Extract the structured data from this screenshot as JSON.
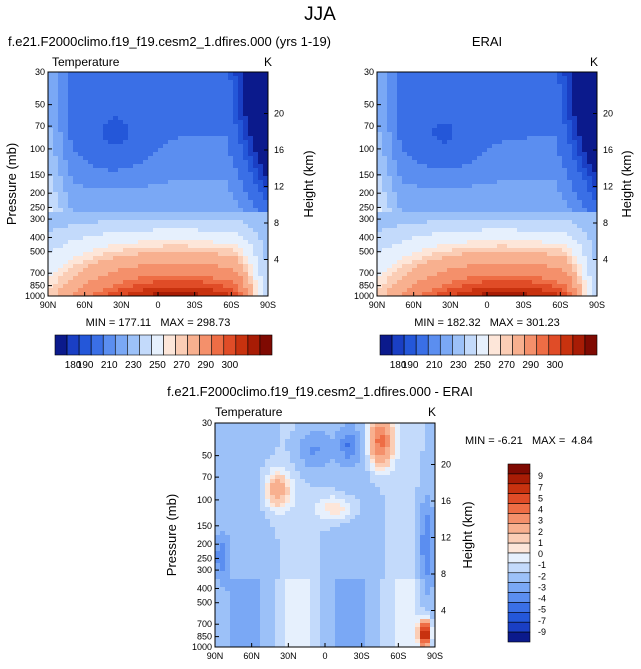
{
  "figure": {
    "title": "JJA"
  },
  "colors": {
    "abs_scale": [
      "#0b1a8c",
      "#1a3fc4",
      "#2457d9",
      "#3a6fe6",
      "#5b8ef0",
      "#7aa8f5",
      "#9cc1f8",
      "#c3dafb",
      "#e6f0fd",
      "#fde6d9",
      "#fbcdb5",
      "#f8b08f",
      "#f4906b",
      "#ee6d45",
      "#e04c27",
      "#c8320f",
      "#a81c05",
      "#7f0a02"
    ],
    "diff_scale": [
      "#0b1a8c",
      "#1a3fc4",
      "#2457d9",
      "#3a6fe6",
      "#5b8ef0",
      "#7aa8f5",
      "#9cc1f8",
      "#c3dafb",
      "#e6f0fd",
      "#fde6d9",
      "#fbcdb5",
      "#f8b08f",
      "#f4906b",
      "#ee6d45",
      "#e04c27",
      "#c8320f",
      "#a81c05",
      "#7f0a02"
    ]
  },
  "chart_data": [
    {
      "type": "heatmap",
      "id": "model",
      "title": "f.e21.F2000climo.f19_f19.cesm2_1.dfires.000 (yrs 1-19)",
      "variable": "Temperature",
      "units": "K",
      "ylabel": "Pressure (mb)",
      "ylabel_right": "Height (km)",
      "x_ticks": [
        "90N",
        "60N",
        "30N",
        "0",
        "30S",
        "60S",
        "90S"
      ],
      "y_ticks": [
        "30",
        "50",
        "70",
        "100",
        "150",
        "200",
        "250",
        "300",
        "400",
        "500",
        "700",
        "850",
        "1000"
      ],
      "y_right_ticks": [
        "20",
        "16",
        "12",
        "8",
        "4"
      ],
      "stats": "MIN = 177.11   MAX = 298.73",
      "colorbar_labels": [
        "180",
        "190",
        "210",
        "230",
        "250",
        "270",
        "290",
        "300"
      ],
      "field": "temperature",
      "vmin": 175,
      "vmax": 305
    },
    {
      "type": "heatmap",
      "id": "obs",
      "title": "ERAI",
      "variable": "",
      "units": "K",
      "ylabel": "",
      "ylabel_right": "Height (km)",
      "x_ticks": [
        "90N",
        "60N",
        "30N",
        "0",
        "30S",
        "60S",
        "90S"
      ],
      "y_ticks": [
        "30",
        "50",
        "70",
        "100",
        "150",
        "200",
        "250",
        "300",
        "400",
        "500",
        "700",
        "850",
        "1000"
      ],
      "y_right_ticks": [
        "20",
        "16",
        "12",
        "8",
        "4"
      ],
      "stats": "MIN = 182.32   MAX = 301.23",
      "colorbar_labels": [
        "180",
        "190",
        "210",
        "230",
        "250",
        "270",
        "290",
        "300"
      ],
      "field": "temperature",
      "vmin": 175,
      "vmax": 305
    },
    {
      "type": "heatmap",
      "id": "diff",
      "title": "f.e21.F2000climo.f19_f19.cesm2_1.dfires.000 - ERAI",
      "variable": "Temperature",
      "units": "K",
      "ylabel": "Pressure (mb)",
      "ylabel_right": "Height (km)",
      "x_ticks": [
        "90N",
        "60N",
        "30N",
        "0",
        "30S",
        "60S",
        "90S"
      ],
      "y_ticks": [
        "30",
        "50",
        "70",
        "100",
        "150",
        "200",
        "250",
        "300",
        "400",
        "500",
        "700",
        "850",
        "1000"
      ],
      "y_right_ticks": [
        "20",
        "16",
        "12",
        "8",
        "4"
      ],
      "stats": "MIN = -6.21   MAX =  4.84",
      "colorbar_labels": [
        "9",
        "7",
        "5",
        "4",
        "3",
        "2",
        "1",
        "0",
        "-1",
        "-2",
        "-3",
        "-4",
        "-5",
        "-7",
        "-9"
      ],
      "field": "difference",
      "vmin": -9,
      "vmax": 9
    }
  ]
}
